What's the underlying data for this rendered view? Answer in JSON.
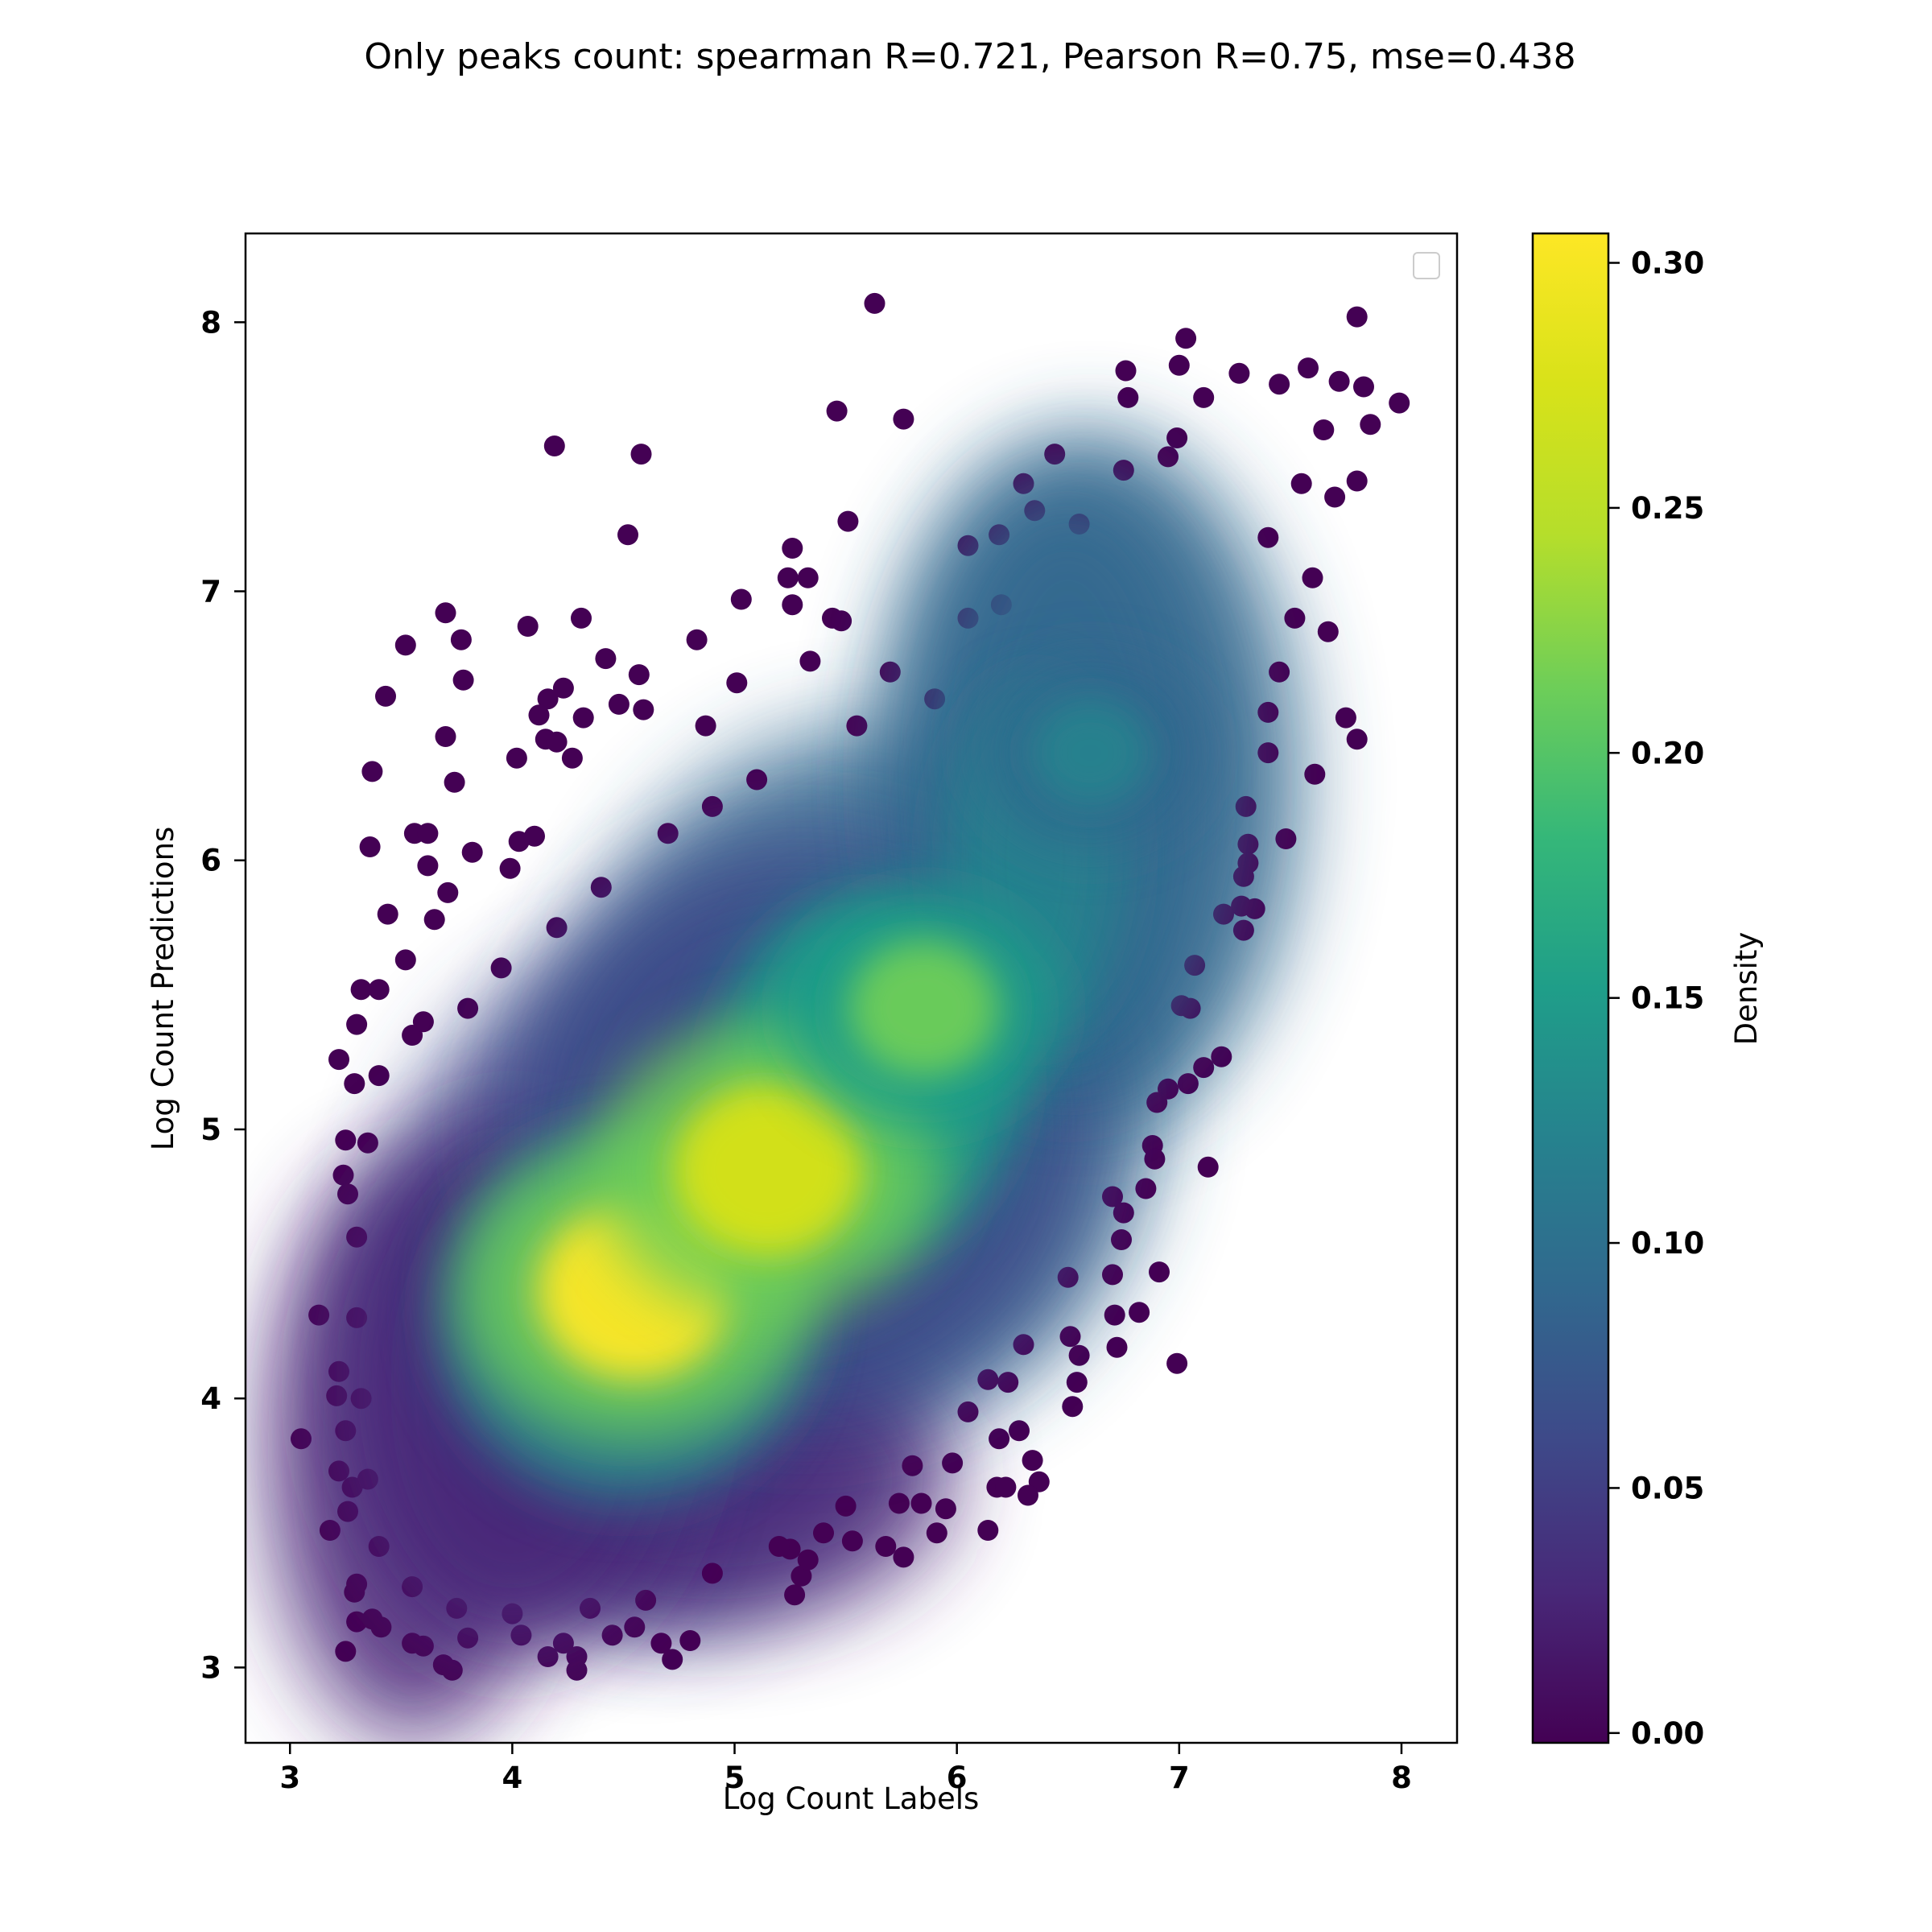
{
  "chart_data": {
    "type": "scatter",
    "title": "Only peaks count: spearman R=0.721, Pearson R=0.75, mse=0.438",
    "xlabel": "Log Count Labels",
    "ylabel": "Log Count Predictions",
    "xlim": [
      2.8,
      8.25
    ],
    "ylim": [
      2.72,
      8.33
    ],
    "xticks": [
      3,
      4,
      5,
      6,
      7,
      8
    ],
    "yticks": [
      3,
      4,
      5,
      6,
      7,
      8
    ],
    "grid": false,
    "legend": "top-right, empty",
    "colorbar": {
      "label": "Density",
      "ticks": [
        "0.00",
        "0.05",
        "0.10",
        "0.15",
        "0.20",
        "0.25",
        "0.30"
      ],
      "tick_values": [
        0,
        0.05,
        0.1,
        0.15,
        0.2,
        0.25,
        0.3
      ],
      "range": [
        -0.002,
        0.306
      ],
      "colormap": "viridis"
    },
    "density_clusters": [
      {
        "x": 4.55,
        "y": 4.4,
        "density": 0.3
      },
      {
        "x": 5.15,
        "y": 4.85,
        "density": 0.29
      },
      {
        "x": 5.85,
        "y": 5.45,
        "density": 0.2
      },
      {
        "x": 6.6,
        "y": 6.4,
        "density": 0.13
      }
    ],
    "series": [
      {
        "points": [
          [
            5.63,
            8.07
          ],
          [
            7.8,
            8.02
          ],
          [
            7.03,
            7.94
          ],
          [
            7.0,
            7.84
          ],
          [
            6.76,
            7.82
          ],
          [
            7.27,
            7.81
          ],
          [
            7.58,
            7.83
          ],
          [
            7.45,
            7.77
          ],
          [
            7.72,
            7.78
          ],
          [
            7.83,
            7.76
          ],
          [
            7.99,
            7.7
          ],
          [
            6.77,
            7.72
          ],
          [
            7.11,
            7.72
          ],
          [
            5.46,
            7.67
          ],
          [
            5.76,
            7.64
          ],
          [
            7.86,
            7.62
          ],
          [
            6.99,
            7.57
          ],
          [
            7.65,
            7.6
          ],
          [
            6.3,
            7.4
          ],
          [
            7.8,
            7.41
          ],
          [
            4.19,
            7.54
          ],
          [
            4.58,
            7.51
          ],
          [
            6.44,
            7.51
          ],
          [
            4.52,
            7.21
          ],
          [
            5.51,
            7.26
          ],
          [
            5.26,
            7.16
          ],
          [
            6.05,
            7.17
          ],
          [
            6.19,
            7.21
          ],
          [
            5.24,
            7.05
          ],
          [
            5.33,
            7.05
          ],
          [
            5.26,
            6.95
          ],
          [
            5.03,
            6.97
          ],
          [
            3.7,
            6.92
          ],
          [
            4.31,
            6.9
          ],
          [
            4.07,
            6.87
          ],
          [
            5.44,
            6.9
          ],
          [
            5.48,
            6.89
          ],
          [
            3.77,
            6.82
          ],
          [
            4.83,
            6.82
          ],
          [
            3.52,
            6.8
          ],
          [
            4.42,
            6.75
          ],
          [
            5.34,
            6.74
          ],
          [
            7.67,
            6.85
          ],
          [
            3.78,
            6.67
          ],
          [
            5.01,
            6.66
          ],
          [
            4.57,
            6.69
          ],
          [
            4.23,
            6.64
          ],
          [
            3.43,
            6.61
          ],
          [
            4.16,
            6.6
          ],
          [
            4.12,
            6.54
          ],
          [
            4.48,
            6.58
          ],
          [
            4.59,
            6.56
          ],
          [
            4.32,
            6.53
          ],
          [
            4.87,
            6.5
          ],
          [
            3.7,
            6.46
          ],
          [
            4.15,
            6.45
          ],
          [
            4.2,
            6.44
          ],
          [
            4.27,
            6.38
          ],
          [
            4.02,
            6.38
          ],
          [
            7.75,
            6.53
          ],
          [
            7.8,
            6.45
          ],
          [
            3.37,
            6.33
          ],
          [
            3.74,
            6.29
          ],
          [
            7.61,
            6.32
          ],
          [
            3.56,
            6.1
          ],
          [
            3.62,
            6.1
          ],
          [
            3.36,
            6.05
          ],
          [
            3.62,
            5.98
          ],
          [
            3.82,
            6.03
          ],
          [
            3.99,
            5.97
          ],
          [
            4.1,
            6.09
          ],
          [
            4.03,
            6.07
          ],
          [
            7.31,
            6.06
          ],
          [
            7.48,
            6.08
          ],
          [
            7.31,
            5.99
          ],
          [
            7.29,
            5.94
          ],
          [
            3.71,
            5.88
          ],
          [
            3.44,
            5.8
          ],
          [
            3.65,
            5.78
          ],
          [
            3.52,
            5.63
          ],
          [
            7.28,
            5.83
          ],
          [
            7.34,
            5.82
          ],
          [
            7.29,
            5.74
          ],
          [
            3.32,
            5.52
          ],
          [
            3.4,
            5.52
          ],
          [
            3.3,
            5.39
          ],
          [
            3.55,
            5.35
          ],
          [
            3.22,
            5.26
          ],
          [
            7.19,
            5.27
          ],
          [
            7.07,
            5.61
          ],
          [
            7.01,
            5.46
          ],
          [
            3.29,
            5.17
          ],
          [
            3.25,
            4.96
          ],
          [
            3.24,
            4.83
          ],
          [
            3.26,
            4.76
          ],
          [
            7.11,
            5.23
          ],
          [
            6.95,
            5.15
          ],
          [
            7.04,
            5.17
          ],
          [
            6.88,
            4.94
          ],
          [
            6.89,
            4.89
          ],
          [
            7.13,
            4.86
          ],
          [
            6.85,
            4.78
          ],
          [
            6.75,
            4.69
          ],
          [
            6.74,
            4.59
          ],
          [
            6.91,
            4.47
          ],
          [
            6.82,
            4.32
          ],
          [
            6.7,
            4.46
          ],
          [
            6.71,
            4.31
          ],
          [
            6.72,
            4.19
          ],
          [
            6.99,
            4.13
          ],
          [
            6.51,
            4.23
          ],
          [
            6.55,
            4.16
          ],
          [
            6.54,
            4.06
          ],
          [
            6.52,
            3.97
          ],
          [
            3.13,
            4.31
          ],
          [
            3.22,
            4.1
          ],
          [
            3.21,
            4.01
          ],
          [
            3.25,
            3.88
          ],
          [
            3.05,
            3.85
          ],
          [
            3.22,
            3.73
          ],
          [
            3.28,
            3.67
          ],
          [
            6.14,
            4.07
          ],
          [
            6.23,
            4.06
          ],
          [
            6.28,
            3.88
          ],
          [
            6.19,
            3.85
          ],
          [
            6.34,
            3.77
          ],
          [
            5.98,
            3.76
          ],
          [
            6.37,
            3.69
          ],
          [
            6.32,
            3.64
          ],
          [
            6.18,
            3.67
          ],
          [
            6.22,
            3.67
          ],
          [
            6.14,
            3.51
          ],
          [
            5.74,
            3.61
          ],
          [
            5.84,
            3.61
          ],
          [
            5.95,
            3.59
          ],
          [
            5.91,
            3.5
          ],
          [
            5.68,
            3.45
          ],
          [
            5.76,
            3.41
          ],
          [
            3.18,
            3.51
          ],
          [
            3.26,
            3.58
          ],
          [
            3.3,
            3.31
          ],
          [
            3.29,
            3.28
          ],
          [
            3.3,
            3.17
          ],
          [
            3.37,
            3.18
          ],
          [
            3.41,
            3.15
          ],
          [
            3.25,
            3.06
          ],
          [
            3.55,
            3.09
          ],
          [
            3.6,
            3.08
          ],
          [
            3.69,
            3.01
          ],
          [
            3.73,
            2.99
          ],
          [
            3.8,
            3.11
          ],
          [
            4.04,
            3.12
          ],
          [
            4.16,
            3.04
          ],
          [
            4.23,
            3.09
          ],
          [
            4.29,
            3.04
          ],
          [
            4.29,
            2.99
          ],
          [
            4.45,
            3.12
          ],
          [
            4.55,
            3.15
          ],
          [
            4.67,
            3.09
          ],
          [
            4.72,
            3.03
          ],
          [
            4.8,
            3.1
          ],
          [
            5.27,
            3.27
          ],
          [
            5.3,
            3.34
          ],
          [
            5.53,
            3.47
          ],
          [
            5.33,
            3.4
          ],
          [
            5.4,
            3.5
          ],
          [
            5.25,
            3.44
          ],
          [
            7.4,
            7.2
          ],
          [
            7.55,
            7.4
          ],
          [
            7.6,
            7.05
          ],
          [
            7.52,
            6.9
          ],
          [
            7.45,
            6.7
          ],
          [
            7.4,
            6.55
          ],
          [
            7.7,
            7.35
          ],
          [
            6.05,
            6.9
          ],
          [
            6.2,
            6.95
          ],
          [
            6.35,
            7.3
          ],
          [
            6.55,
            7.25
          ],
          [
            5.9,
            6.6
          ],
          [
            5.7,
            6.7
          ],
          [
            5.55,
            6.5
          ],
          [
            5.1,
            6.3
          ],
          [
            4.9,
            6.2
          ],
          [
            4.7,
            6.1
          ],
          [
            4.4,
            5.9
          ],
          [
            4.2,
            5.75
          ],
          [
            3.95,
            5.6
          ],
          [
            3.8,
            5.45
          ],
          [
            3.6,
            5.4
          ],
          [
            3.4,
            5.2
          ],
          [
            3.35,
            4.95
          ],
          [
            3.3,
            4.6
          ],
          [
            3.3,
            4.3
          ],
          [
            3.32,
            4.0
          ],
          [
            3.35,
            3.7
          ],
          [
            3.4,
            3.45
          ],
          [
            3.55,
            3.3
          ],
          [
            3.75,
            3.22
          ],
          [
            4.0,
            3.2
          ],
          [
            4.35,
            3.22
          ],
          [
            4.6,
            3.25
          ],
          [
            4.9,
            3.35
          ],
          [
            5.2,
            3.45
          ],
          [
            5.5,
            3.6
          ],
          [
            5.8,
            3.75
          ],
          [
            6.05,
            3.95
          ],
          [
            6.3,
            4.2
          ],
          [
            6.5,
            4.45
          ],
          [
            6.7,
            4.75
          ],
          [
            6.9,
            5.1
          ],
          [
            7.05,
            5.45
          ],
          [
            7.2,
            5.8
          ],
          [
            7.3,
            6.2
          ],
          [
            7.4,
            6.4
          ],
          [
            6.75,
            7.45
          ],
          [
            6.95,
            7.5
          ]
        ]
      }
    ]
  }
}
